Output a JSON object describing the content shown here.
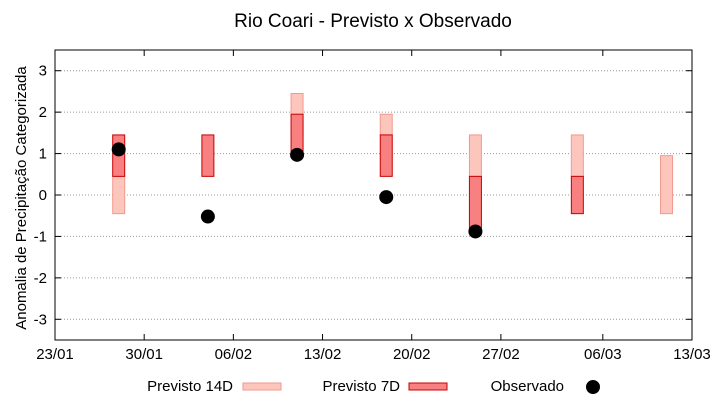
{
  "chart_data": {
    "type": "scatter",
    "title": "Rio Coari - Previsto x Observado",
    "ylabel": "Anomalia de Precipitação Categorizada",
    "xlabel": "",
    "ylim": [
      -3.5,
      3.5
    ],
    "yticks": [
      -3,
      -2,
      -1,
      0,
      1,
      2,
      3
    ],
    "xlim": [
      "23/01",
      "13/03"
    ],
    "xticks": [
      "23/01",
      "30/01",
      "06/02",
      "13/02",
      "20/02",
      "27/02",
      "06/03",
      "13/03"
    ],
    "grid": "horizontal dotted",
    "legend_position": "bottom",
    "legend": {
      "previsto14": "Previsto 14D",
      "previsto7": "Previsto 7D",
      "observado": "Observado"
    },
    "colors": {
      "previsto14_fill": "#fcc6bd",
      "previsto14_stroke": "#f29a8e",
      "previsto7_fill": "#f98080",
      "previsto7_stroke": "#c80000",
      "observado": "#000000"
    },
    "series": [
      {
        "name": "Previsto 14D",
        "bars": [
          {
            "date": "28/01",
            "low": -0.45,
            "high": 0.45
          },
          {
            "date": "11/02",
            "low": 1.45,
            "high": 2.45
          },
          {
            "date": "18/02",
            "low": 1.45,
            "high": 1.95
          },
          {
            "date": "25/02",
            "low": 0.45,
            "high": 1.45
          },
          {
            "date": "04/03",
            "low": 0.45,
            "high": 1.45
          },
          {
            "date": "11/03",
            "low": -0.45,
            "high": 0.95
          }
        ]
      },
      {
        "name": "Previsto 7D",
        "bars": [
          {
            "date": "28/01",
            "low": 0.45,
            "high": 1.45
          },
          {
            "date": "04/02",
            "low": 0.45,
            "high": 1.45
          },
          {
            "date": "11/02",
            "low": 0.95,
            "high": 1.95
          },
          {
            "date": "18/02",
            "low": 0.45,
            "high": 1.45
          },
          {
            "date": "25/02",
            "low": -0.9,
            "high": 0.45
          },
          {
            "date": "04/03",
            "low": -0.45,
            "high": 0.45
          }
        ]
      },
      {
        "name": "Observado",
        "points": [
          {
            "date": "28/01",
            "value": 1.1
          },
          {
            "date": "04/02",
            "value": -0.52
          },
          {
            "date": "11/02",
            "value": 0.97
          },
          {
            "date": "18/02",
            "value": -0.05
          },
          {
            "date": "25/02",
            "value": -0.88
          }
        ]
      }
    ]
  }
}
